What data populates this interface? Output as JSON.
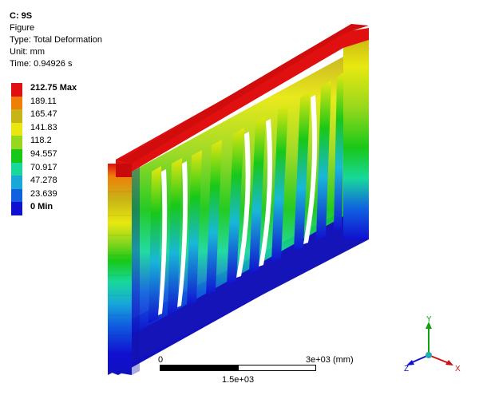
{
  "header": {
    "title": "C: 9S",
    "figure": "Figure",
    "type": "Type: Total Deformation",
    "unit": "Unit: mm",
    "time": "Time: 0.94926 s"
  },
  "legend": {
    "levels": [
      {
        "label": "212.75 Max",
        "color": "#e01010",
        "bold": true
      },
      {
        "label": "189.11",
        "color": "#f07f0a"
      },
      {
        "label": "165.47",
        "color": "#c8b416"
      },
      {
        "label": "141.83",
        "color": "#e8e810"
      },
      {
        "label": "118.2",
        "color": "#98d81c"
      },
      {
        "label": "94.557",
        "color": "#18c818"
      },
      {
        "label": "70.917",
        "color": "#18d89c"
      },
      {
        "label": "47.278",
        "color": "#18a8d8"
      },
      {
        "label": "23.639",
        "color": "#1060e0"
      },
      {
        "label": "0 Min",
        "color": "#1010d0",
        "bold": true
      }
    ]
  },
  "scale_bar": {
    "start_label": "0",
    "end_label": "3e+03 (mm)",
    "mid_label": "1.5e+03"
  },
  "triad": {
    "x_label": "X",
    "y_label": "Y",
    "z_label": "Z",
    "x_color": "#d01010",
    "y_color": "#10a010",
    "z_color": "#1010d0"
  }
}
